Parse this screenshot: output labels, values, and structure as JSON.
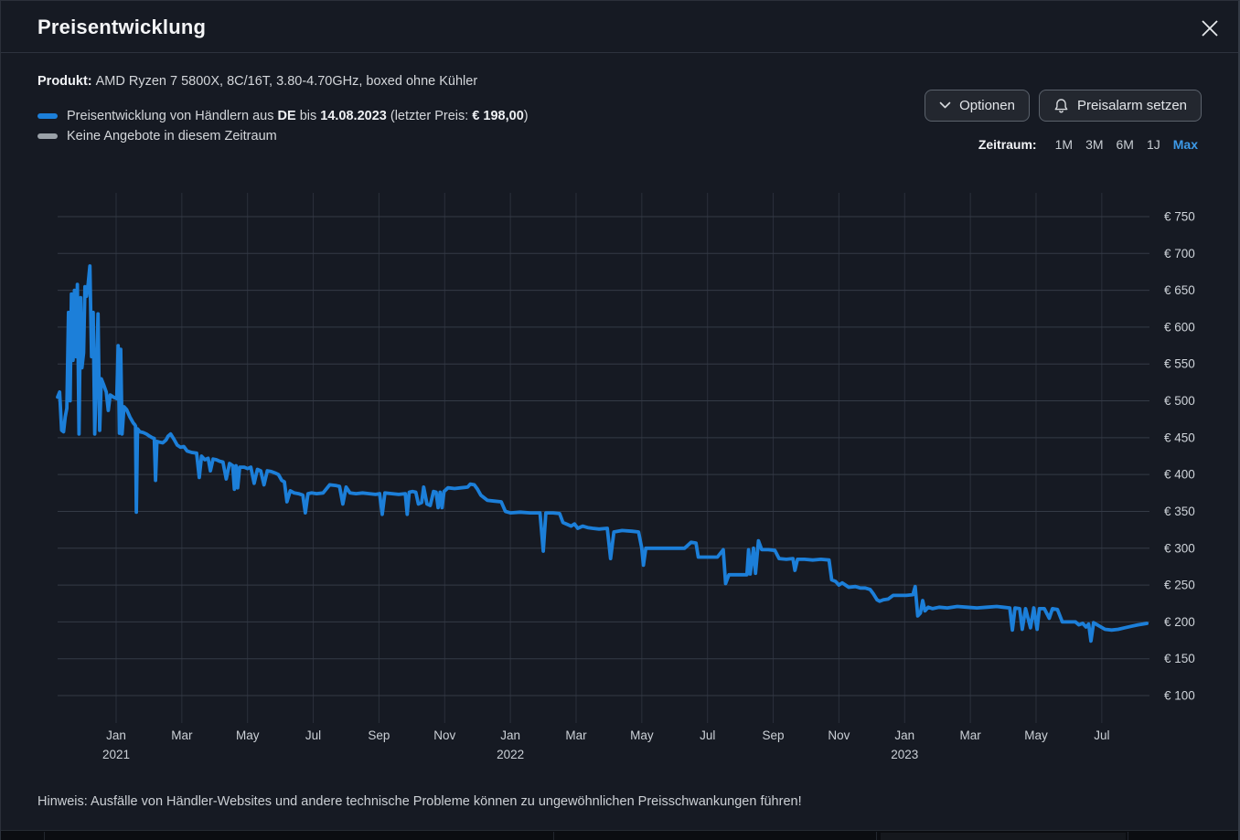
{
  "header": {
    "title": "Preisentwicklung",
    "close_icon": "close"
  },
  "product": {
    "label": "Produkt:",
    "value": "AMD Ryzen 7 5800X, 8C/16T, 3.80-4.70GHz, boxed ohne Kühler"
  },
  "legend": {
    "series": {
      "swatch_color": "#1c7fd9",
      "prefix": "Preisentwicklung von Händlern aus ",
      "country": "DE",
      "mid": " bis ",
      "date": "14.08.2023",
      "paren": " (letzter Preis: ",
      "price": "€ 198,00",
      "close_paren": ")"
    },
    "no_offers": {
      "swatch_color": "#9aa1a8",
      "text": "Keine Angebote in diesem Zeitraum"
    }
  },
  "toolbar": {
    "options_label": "Optionen",
    "alarm_label": "Preisalarm setzen"
  },
  "zeitraum": {
    "label": "Zeitraum:",
    "options": [
      "1M",
      "3M",
      "6M",
      "1J",
      "Max"
    ],
    "active": "Max",
    "active_color": "#3d9ae8"
  },
  "footer": {
    "hinweis": "Hinweis: Ausfälle von Händler-Websites und andere technische Probleme können zu ungewöhnlichen Preisschwankungen führen!"
  },
  "chart_data": {
    "type": "line",
    "title": "Preisentwicklung AMD Ryzen 7 5800X",
    "line_color": "#1c7fd9",
    "grid": true,
    "ylabel_prefix": "€ ",
    "y_ticks": [
      750,
      700,
      650,
      600,
      550,
      500,
      450,
      400,
      350,
      300,
      250,
      200,
      150,
      100
    ],
    "ylim": [
      63,
      782
    ],
    "x_unit": "months since 2021-01-01",
    "xlim": [
      -1.78,
      31.37
    ],
    "x_ticks": [
      {
        "m": 0,
        "label": "Jan",
        "year": "2021"
      },
      {
        "m": 2,
        "label": "Mar"
      },
      {
        "m": 4,
        "label": "May"
      },
      {
        "m": 6,
        "label": "Jul"
      },
      {
        "m": 8,
        "label": "Sep"
      },
      {
        "m": 10,
        "label": "Nov"
      },
      {
        "m": 12,
        "label": "Jan",
        "year": "2022"
      },
      {
        "m": 14,
        "label": "Mar"
      },
      {
        "m": 16,
        "label": "May"
      },
      {
        "m": 18,
        "label": "Jul"
      },
      {
        "m": 20,
        "label": "Sep"
      },
      {
        "m": 22,
        "label": "Nov"
      },
      {
        "m": 24,
        "label": "Jan",
        "year": "2023"
      },
      {
        "m": 26,
        "label": "Mar"
      },
      {
        "m": 28,
        "label": "May"
      },
      {
        "m": 30,
        "label": "Jul"
      }
    ],
    "last_price": "€ 198,00",
    "last_date": "14.08.2023",
    "series": [
      {
        "name": "Preisentwicklung von Händlern aus DE",
        "points": [
          [
            -1.78,
            505
          ],
          [
            -1.72,
            512
          ],
          [
            -1.66,
            460
          ],
          [
            -1.6,
            458
          ],
          [
            -1.55,
            478
          ],
          [
            -1.5,
            490
          ],
          [
            -1.45,
            620
          ],
          [
            -1.4,
            500
          ],
          [
            -1.36,
            645
          ],
          [
            -1.31,
            555
          ],
          [
            -1.27,
            650
          ],
          [
            -1.22,
            560
          ],
          [
            -1.18,
            658
          ],
          [
            -1.13,
            455
          ],
          [
            -1.08,
            640
          ],
          [
            -1.04,
            545
          ],
          [
            -0.99,
            565
          ],
          [
            -0.95,
            655
          ],
          [
            -0.9,
            642
          ],
          [
            -0.85,
            660
          ],
          [
            -0.8,
            683
          ],
          [
            -0.75,
            560
          ],
          [
            -0.7,
            620
          ],
          [
            -0.65,
            455
          ],
          [
            -0.6,
            533
          ],
          [
            -0.55,
            618
          ],
          [
            -0.5,
            460
          ],
          [
            -0.45,
            530
          ],
          [
            -0.38,
            522
          ],
          [
            -0.3,
            512
          ],
          [
            -0.24,
            487
          ],
          [
            -0.18,
            508
          ],
          [
            -0.08,
            505
          ],
          [
            0.02,
            503
          ],
          [
            0.06,
            575
          ],
          [
            0.1,
            456
          ],
          [
            0.14,
            570
          ],
          [
            0.18,
            455
          ],
          [
            0.24,
            492
          ],
          [
            0.32,
            488
          ],
          [
            0.42,
            478
          ],
          [
            0.52,
            470
          ],
          [
            0.56,
            468
          ],
          [
            0.59,
            466
          ],
          [
            0.615,
            349
          ],
          [
            0.65,
            462
          ],
          [
            0.72,
            458
          ],
          [
            0.82,
            457
          ],
          [
            0.92,
            455
          ],
          [
            1.02,
            452
          ],
          [
            1.1,
            450
          ],
          [
            1.16,
            449
          ],
          [
            1.2,
            392
          ],
          [
            1.24,
            445
          ],
          [
            1.32,
            444
          ],
          [
            1.42,
            443
          ],
          [
            1.52,
            447
          ],
          [
            1.58,
            452
          ],
          [
            1.66,
            455
          ],
          [
            1.76,
            448
          ],
          [
            1.86,
            440
          ],
          [
            1.96,
            437
          ],
          [
            2.06,
            438
          ],
          [
            2.16,
            432
          ],
          [
            2.3,
            430
          ],
          [
            2.45,
            429
          ],
          [
            2.53,
            396
          ],
          [
            2.6,
            425
          ],
          [
            2.7,
            420
          ],
          [
            2.8,
            422
          ],
          [
            2.87,
            405
          ],
          [
            2.95,
            421
          ],
          [
            3.05,
            420
          ],
          [
            3.15,
            418
          ],
          [
            3.25,
            417
          ],
          [
            3.35,
            394
          ],
          [
            3.45,
            415
          ],
          [
            3.55,
            412
          ],
          [
            3.6,
            380
          ],
          [
            3.65,
            412
          ],
          [
            3.7,
            382
          ],
          [
            3.76,
            410
          ],
          [
            3.9,
            410
          ],
          [
            4.0,
            408
          ],
          [
            4.1,
            410
          ],
          [
            4.2,
            388
          ],
          [
            4.3,
            407
          ],
          [
            4.4,
            405
          ],
          [
            4.5,
            386
          ],
          [
            4.6,
            405
          ],
          [
            4.72,
            404
          ],
          [
            4.84,
            402
          ],
          [
            4.94,
            400
          ],
          [
            5.04,
            392
          ],
          [
            5.12,
            390
          ],
          [
            5.2,
            363
          ],
          [
            5.3,
            378
          ],
          [
            5.42,
            375
          ],
          [
            5.55,
            374
          ],
          [
            5.68,
            372
          ],
          [
            5.76,
            348
          ],
          [
            5.84,
            374
          ],
          [
            5.95,
            375
          ],
          [
            6.1,
            374
          ],
          [
            6.3,
            375
          ],
          [
            6.5,
            386
          ],
          [
            6.7,
            385
          ],
          [
            6.8,
            384
          ],
          [
            6.9,
            360
          ],
          [
            7.0,
            383
          ],
          [
            7.12,
            375
          ],
          [
            7.3,
            374
          ],
          [
            7.5,
            375
          ],
          [
            7.7,
            374
          ],
          [
            7.9,
            373
          ],
          [
            8.02,
            374
          ],
          [
            8.1,
            346
          ],
          [
            8.18,
            375
          ],
          [
            8.4,
            374
          ],
          [
            8.6,
            373
          ],
          [
            8.8,
            374
          ],
          [
            8.86,
            346
          ],
          [
            8.92,
            376
          ],
          [
            9.02,
            377
          ],
          [
            9.12,
            376
          ],
          [
            9.2,
            360
          ],
          [
            9.3,
            362
          ],
          [
            9.36,
            383
          ],
          [
            9.46,
            360
          ],
          [
            9.56,
            358
          ],
          [
            9.66,
            377
          ],
          [
            9.74,
            376
          ],
          [
            9.8,
            355
          ],
          [
            9.86,
            376
          ],
          [
            9.92,
            355
          ],
          [
            9.98,
            377
          ],
          [
            10.1,
            382
          ],
          [
            10.3,
            381
          ],
          [
            10.5,
            382
          ],
          [
            10.7,
            383
          ],
          [
            10.78,
            387
          ],
          [
            10.9,
            386
          ],
          [
            11.0,
            380
          ],
          [
            11.1,
            372
          ],
          [
            11.3,
            365
          ],
          [
            11.5,
            364
          ],
          [
            11.72,
            363
          ],
          [
            11.85,
            350
          ],
          [
            12.0,
            348
          ],
          [
            12.3,
            349
          ],
          [
            12.6,
            348
          ],
          [
            12.9,
            348
          ],
          [
            13.0,
            296
          ],
          [
            13.08,
            348
          ],
          [
            13.3,
            348
          ],
          [
            13.5,
            347
          ],
          [
            13.6,
            335
          ],
          [
            13.75,
            332
          ],
          [
            13.85,
            330
          ],
          [
            13.95,
            333
          ],
          [
            14.05,
            327
          ],
          [
            14.2,
            330
          ],
          [
            14.35,
            328
          ],
          [
            14.5,
            327
          ],
          [
            14.7,
            326
          ],
          [
            14.95,
            327
          ],
          [
            15.05,
            286
          ],
          [
            15.15,
            322
          ],
          [
            15.4,
            324
          ],
          [
            15.7,
            323
          ],
          [
            15.9,
            322
          ],
          [
            16.0,
            300
          ],
          [
            16.05,
            277
          ],
          [
            16.12,
            300
          ],
          [
            16.4,
            300
          ],
          [
            16.7,
            300
          ],
          [
            17.0,
            300
          ],
          [
            17.3,
            300
          ],
          [
            17.5,
            308
          ],
          [
            17.65,
            307
          ],
          [
            17.72,
            288
          ],
          [
            18.0,
            288
          ],
          [
            18.3,
            288
          ],
          [
            18.48,
            298
          ],
          [
            18.55,
            252
          ],
          [
            18.65,
            264
          ],
          [
            18.85,
            264
          ],
          [
            19.05,
            264
          ],
          [
            19.2,
            264
          ],
          [
            19.25,
            298
          ],
          [
            19.3,
            265
          ],
          [
            19.4,
            300
          ],
          [
            19.46,
            266
          ],
          [
            19.55,
            310
          ],
          [
            19.65,
            298
          ],
          [
            19.85,
            298
          ],
          [
            20.05,
            297
          ],
          [
            20.18,
            286
          ],
          [
            20.4,
            285
          ],
          [
            20.6,
            286
          ],
          [
            20.66,
            270
          ],
          [
            20.74,
            285
          ],
          [
            20.95,
            285
          ],
          [
            21.2,
            284
          ],
          [
            21.45,
            285
          ],
          [
            21.7,
            284
          ],
          [
            21.78,
            257
          ],
          [
            21.9,
            255
          ],
          [
            22.0,
            250
          ],
          [
            22.1,
            253
          ],
          [
            22.3,
            247
          ],
          [
            22.5,
            248
          ],
          [
            22.65,
            246
          ],
          [
            22.8,
            246
          ],
          [
            22.95,
            244
          ],
          [
            23.05,
            238
          ],
          [
            23.16,
            230
          ],
          [
            23.24,
            228
          ],
          [
            23.35,
            230
          ],
          [
            23.5,
            231
          ],
          [
            23.65,
            236
          ],
          [
            23.85,
            236
          ],
          [
            24.05,
            236
          ],
          [
            24.25,
            237
          ],
          [
            24.32,
            248
          ],
          [
            24.4,
            208
          ],
          [
            24.48,
            212
          ],
          [
            24.55,
            229
          ],
          [
            24.62,
            215
          ],
          [
            24.72,
            220
          ],
          [
            24.85,
            218
          ],
          [
            25.05,
            220
          ],
          [
            25.3,
            219
          ],
          [
            25.6,
            221
          ],
          [
            25.9,
            220
          ],
          [
            26.2,
            219
          ],
          [
            26.5,
            220
          ],
          [
            26.8,
            221
          ],
          [
            27.0,
            220
          ],
          [
            27.2,
            219
          ],
          [
            27.28,
            189
          ],
          [
            27.36,
            219
          ],
          [
            27.5,
            218
          ],
          [
            27.58,
            190
          ],
          [
            27.68,
            218
          ],
          [
            27.83,
            192
          ],
          [
            27.93,
            219
          ],
          [
            28.03,
            190
          ],
          [
            28.1,
            218
          ],
          [
            28.25,
            218
          ],
          [
            28.4,
            205
          ],
          [
            28.5,
            218
          ],
          [
            28.65,
            217
          ],
          [
            28.8,
            200
          ],
          [
            29.0,
            200
          ],
          [
            29.2,
            200
          ],
          [
            29.3,
            196
          ],
          [
            29.42,
            198
          ],
          [
            29.52,
            193
          ],
          [
            29.6,
            197
          ],
          [
            29.67,
            174
          ],
          [
            29.75,
            199
          ],
          [
            29.9,
            195
          ],
          [
            30.1,
            190
          ],
          [
            30.3,
            189
          ],
          [
            30.5,
            190
          ],
          [
            30.7,
            192
          ],
          [
            30.9,
            194
          ],
          [
            31.1,
            196
          ],
          [
            31.25,
            197
          ],
          [
            31.37,
            198
          ]
        ]
      }
    ]
  }
}
